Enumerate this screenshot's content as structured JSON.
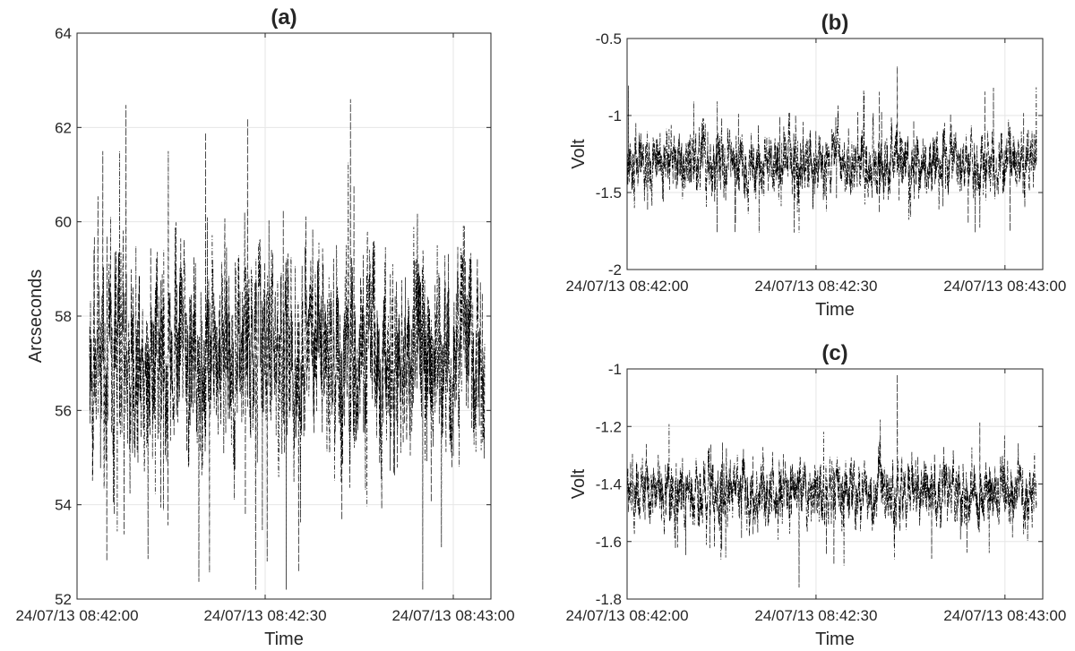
{
  "chart_data": [
    {
      "id": "a",
      "type": "line",
      "title": "(a)",
      "xlabel": "Time",
      "ylabel": "Arcseconds",
      "xlim": [
        "24/07/13 08:42:00",
        "24/07/13 08:43:06"
      ],
      "ylim": [
        52,
        64
      ],
      "xticks": [
        "24/07/13 08:42:00",
        "24/07/13 08:42:30",
        "24/07/13 08:43:00"
      ],
      "yticks": [
        "52",
        "54",
        "56",
        "58",
        "60",
        "62",
        "64"
      ],
      "grid": true,
      "line_color": "#000000",
      "line_style": "dash-dot",
      "signal": {
        "mean": 57.2,
        "noise_amplitude": 1.6,
        "min": 52.2,
        "max": 62.6,
        "start": "24/07/13 08:42:02",
        "end": "24/07/13 08:43:05"
      }
    },
    {
      "id": "b",
      "type": "line",
      "title": "(b)",
      "xlabel": "Time",
      "ylabel": "Volt",
      "xlim": [
        "24/07/13 08:42:00",
        "24/07/13 08:43:06"
      ],
      "ylim": [
        -2,
        -0.5
      ],
      "xticks": [
        "24/07/13 08:42:00",
        "24/07/13 08:42:30",
        "24/07/13 08:43:00"
      ],
      "yticks": [
        "-2",
        "-1.5",
        "-1",
        "-0.5"
      ],
      "grid": true,
      "line_color": "#000000",
      "line_style": "dash-dot",
      "signal": {
        "mean": -1.3,
        "noise_amplitude": 0.15,
        "min": -1.76,
        "max": -0.68,
        "start": "24/07/13 08:42:00",
        "end": "24/07/13 08:43:05"
      }
    },
    {
      "id": "c",
      "type": "line",
      "title": "(c)",
      "xlabel": "Time",
      "ylabel": "Volt",
      "xlim": [
        "24/07/13 08:42:00",
        "24/07/13 08:43:06"
      ],
      "ylim": [
        -1.8,
        -1
      ],
      "xticks": [
        "24/07/13 08:42:00",
        "24/07/13 08:42:30",
        "24/07/13 08:43:00"
      ],
      "yticks": [
        "-1.8",
        "-1.6",
        "-1.4",
        "-1.2",
        "-1"
      ],
      "grid": true,
      "line_color": "#000000",
      "line_style": "dash-dot",
      "signal": {
        "mean": -1.43,
        "noise_amplitude": 0.08,
        "min": -1.76,
        "max": -1.02,
        "start": "24/07/13 08:42:00",
        "end": "24/07/13 08:43:05"
      }
    }
  ]
}
